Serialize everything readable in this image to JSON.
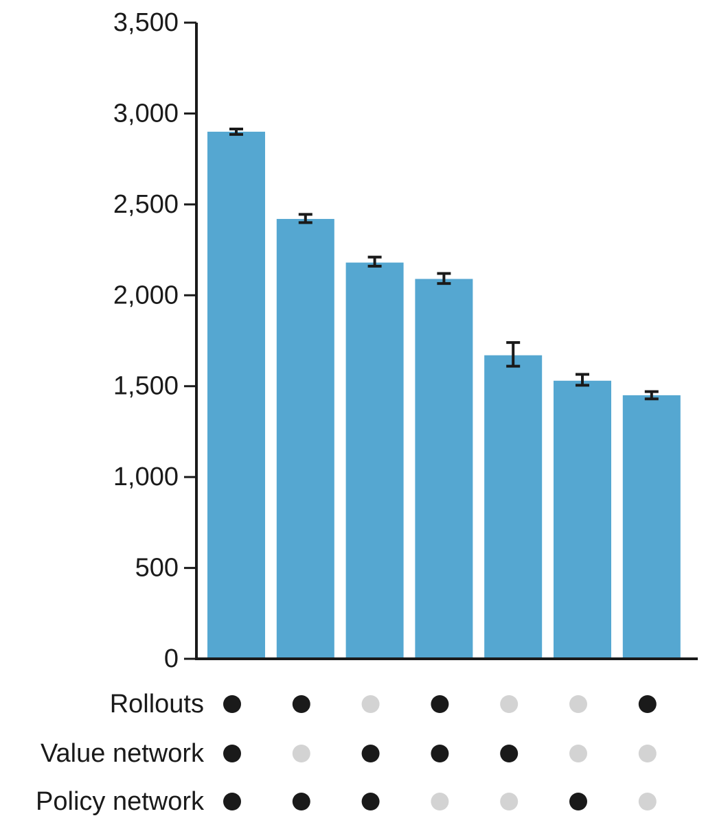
{
  "chart_data": {
    "type": "bar",
    "title": "",
    "xlabel": "",
    "ylabel": "",
    "ylim": [
      0,
      3500
    ],
    "yticks": [
      0,
      500,
      1000,
      1500,
      2000,
      2500,
      3000,
      3500
    ],
    "ytick_labels": [
      "0",
      "500",
      "1,000",
      "1,500",
      "2,000",
      "2,500",
      "3,000",
      "3,500"
    ],
    "grid": false,
    "bar_color": "#55a7d1",
    "error_color": "#1a1a1a",
    "values": [
      2900,
      2420,
      2180,
      2090,
      1670,
      1530,
      1450
    ],
    "errors": [
      [
        2885,
        2915
      ],
      [
        2400,
        2445
      ],
      [
        2160,
        2210
      ],
      [
        2065,
        2120
      ],
      [
        1610,
        1740
      ],
      [
        1505,
        1565
      ],
      [
        1430,
        1470
      ]
    ],
    "indicator_rows": [
      {
        "label": "Rollouts",
        "active": [
          true,
          true,
          false,
          true,
          false,
          false,
          true
        ]
      },
      {
        "label": "Value network",
        "active": [
          true,
          false,
          true,
          true,
          true,
          false,
          false
        ]
      },
      {
        "label": "Policy network",
        "active": [
          true,
          true,
          true,
          false,
          false,
          true,
          false
        ]
      }
    ],
    "dot_on_color": "#1a1a1a",
    "dot_off_color": "#d3d3d3"
  }
}
